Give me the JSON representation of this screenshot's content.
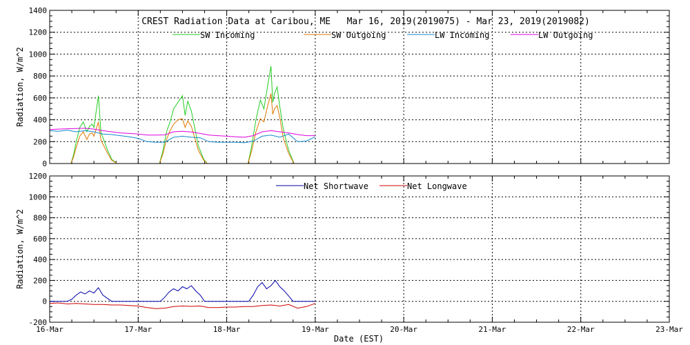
{
  "page_title": "CREST Radiation Data at Caribou, ME   Mar 16, 2019(2019075) - Mar 23, 2019(2019082)",
  "xlabel": "Date (EST)",
  "x_ticks": [
    "16-Mar",
    "17-Mar",
    "18-Mar",
    "19-Mar",
    "20-Mar",
    "21-Mar",
    "22-Mar",
    "23-Mar"
  ],
  "colors": {
    "sw_incoming": "#22cc22",
    "sw_outgoing": "#dd7700",
    "lw_incoming": "#1188cc",
    "lw_outgoing": "#dd00dd",
    "net_shortwave": "#0000aa",
    "net_longwave": "#cc0000"
  },
  "chart_data": [
    {
      "type": "line",
      "panel": "top",
      "title": "CREST Radiation Data at Caribou, ME   Mar 16, 2019(2019075) - Mar 23, 2019(2019082)",
      "ylabel": "Radiation, W/m^2",
      "xlim": [
        0,
        7
      ],
      "ylim": [
        0,
        1400
      ],
      "y_ticks": [
        0,
        200,
        400,
        600,
        800,
        1000,
        1200,
        1400
      ],
      "grid": true,
      "legend": "top-center",
      "series": [
        {
          "name": "SW Incoming",
          "color_key": "sw_incoming",
          "x": [
            0.0,
            0.24,
            0.27,
            0.3,
            0.34,
            0.38,
            0.42,
            0.45,
            0.48,
            0.5,
            0.55,
            0.58,
            0.6,
            0.65,
            0.7,
            0.76,
            1.0,
            1.24,
            1.28,
            1.32,
            1.36,
            1.4,
            1.45,
            1.5,
            1.53,
            1.56,
            1.6,
            1.64,
            1.68,
            1.74,
            1.78,
            2.0,
            2.24,
            2.28,
            2.33,
            2.38,
            2.42,
            2.46,
            2.5,
            2.52,
            2.54,
            2.57,
            2.6,
            2.64,
            2.7,
            2.76,
            3.0
          ],
          "y": [
            0,
            0,
            80,
            200,
            330,
            380,
            290,
            340,
            360,
            330,
            620,
            280,
            240,
            130,
            40,
            0,
            0,
            0,
            120,
            290,
            380,
            500,
            560,
            620,
            440,
            570,
            480,
            320,
            160,
            40,
            0,
            0,
            0,
            150,
            400,
            580,
            500,
            700,
            890,
            560,
            640,
            700,
            520,
            310,
            120,
            0,
            0
          ]
        },
        {
          "name": "SW Outgoing",
          "color_key": "sw_outgoing",
          "x": [
            0.0,
            0.24,
            0.27,
            0.3,
            0.34,
            0.38,
            0.42,
            0.45,
            0.48,
            0.5,
            0.55,
            0.58,
            0.6,
            0.65,
            0.7,
            0.76,
            1.0,
            1.24,
            1.28,
            1.32,
            1.36,
            1.4,
            1.45,
            1.5,
            1.53,
            1.56,
            1.6,
            1.64,
            1.68,
            1.74,
            1.78,
            2.0,
            2.24,
            2.28,
            2.33,
            2.38,
            2.42,
            2.46,
            2.5,
            2.52,
            2.54,
            2.57,
            2.6,
            2.64,
            2.7,
            2.76,
            3.0
          ],
          "y": [
            0,
            0,
            60,
            150,
            250,
            290,
            220,
            270,
            280,
            250,
            380,
            210,
            180,
            100,
            30,
            0,
            0,
            0,
            90,
            220,
            300,
            360,
            400,
            410,
            330,
            390,
            340,
            230,
            120,
            30,
            0,
            0,
            0,
            110,
            290,
            410,
            380,
            520,
            640,
            450,
            500,
            530,
            420,
            230,
            90,
            0,
            0
          ]
        },
        {
          "name": "LW Incoming",
          "color_key": "lw_incoming",
          "x": [
            0.0,
            0.1,
            0.2,
            0.3,
            0.4,
            0.5,
            0.6,
            0.7,
            0.8,
            0.9,
            1.0,
            1.1,
            1.2,
            1.3,
            1.4,
            1.5,
            1.6,
            1.7,
            1.8,
            1.9,
            2.0,
            2.1,
            2.2,
            2.3,
            2.4,
            2.5,
            2.6,
            2.7,
            2.8,
            2.9,
            3.0
          ],
          "y": [
            300,
            295,
            305,
            290,
            300,
            290,
            270,
            265,
            255,
            245,
            230,
            200,
            195,
            195,
            240,
            250,
            240,
            235,
            200,
            195,
            195,
            195,
            190,
            205,
            250,
            260,
            240,
            270,
            200,
            205,
            245
          ]
        },
        {
          "name": "LW Outgoing",
          "color_key": "lw_outgoing",
          "x": [
            0.0,
            0.1,
            0.2,
            0.3,
            0.4,
            0.5,
            0.6,
            0.7,
            0.8,
            0.9,
            1.0,
            1.1,
            1.2,
            1.3,
            1.4,
            1.5,
            1.6,
            1.7,
            1.8,
            1.9,
            2.0,
            2.1,
            2.2,
            2.3,
            2.4,
            2.5,
            2.6,
            2.7,
            2.8,
            2.9,
            3.0
          ],
          "y": [
            310,
            315,
            318,
            320,
            322,
            315,
            300,
            290,
            280,
            275,
            270,
            260,
            260,
            262,
            290,
            295,
            288,
            275,
            260,
            255,
            250,
            245,
            240,
            255,
            290,
            300,
            290,
            280,
            265,
            255,
            255
          ]
        }
      ]
    },
    {
      "type": "line",
      "panel": "bottom",
      "ylabel": "Radiation, W/m^2",
      "xlim": [
        0,
        7
      ],
      "ylim": [
        -200,
        1200
      ],
      "y_ticks": [
        -200,
        0,
        200,
        400,
        600,
        800,
        1000,
        1200
      ],
      "grid": true,
      "legend": "top-center",
      "series": [
        {
          "name": "Net Shortwave",
          "color_key": "net_shortwave",
          "x": [
            0.0,
            0.2,
            0.25,
            0.3,
            0.35,
            0.4,
            0.45,
            0.5,
            0.55,
            0.6,
            0.65,
            0.7,
            1.0,
            1.25,
            1.3,
            1.35,
            1.4,
            1.45,
            1.5,
            1.55,
            1.6,
            1.65,
            1.7,
            1.75,
            2.0,
            2.25,
            2.3,
            2.35,
            2.4,
            2.45,
            2.5,
            2.55,
            2.6,
            2.65,
            2.7,
            2.75,
            3.0
          ],
          "y": [
            0,
            0,
            20,
            60,
            90,
            70,
            100,
            80,
            130,
            60,
            30,
            0,
            0,
            0,
            40,
            90,
            120,
            100,
            140,
            120,
            150,
            100,
            60,
            0,
            0,
            0,
            60,
            140,
            180,
            120,
            150,
            200,
            140,
            100,
            50,
            0,
            0
          ]
        },
        {
          "name": "Net Longwave",
          "color_key": "net_longwave",
          "x": [
            0.0,
            0.1,
            0.2,
            0.3,
            0.4,
            0.5,
            0.6,
            0.7,
            0.8,
            0.9,
            1.0,
            1.1,
            1.2,
            1.3,
            1.4,
            1.5,
            1.6,
            1.7,
            1.8,
            1.9,
            2.0,
            2.1,
            2.2,
            2.3,
            2.4,
            2.5,
            2.6,
            2.7,
            2.8,
            2.9,
            3.0
          ],
          "y": [
            -20,
            -15,
            -25,
            -20,
            -25,
            -30,
            -30,
            -35,
            -35,
            -40,
            -45,
            -60,
            -70,
            -65,
            -50,
            -45,
            -48,
            -45,
            -60,
            -60,
            -55,
            -55,
            -50,
            -50,
            -40,
            -35,
            -45,
            -30,
            -65,
            -50,
            -20
          ]
        }
      ]
    }
  ]
}
